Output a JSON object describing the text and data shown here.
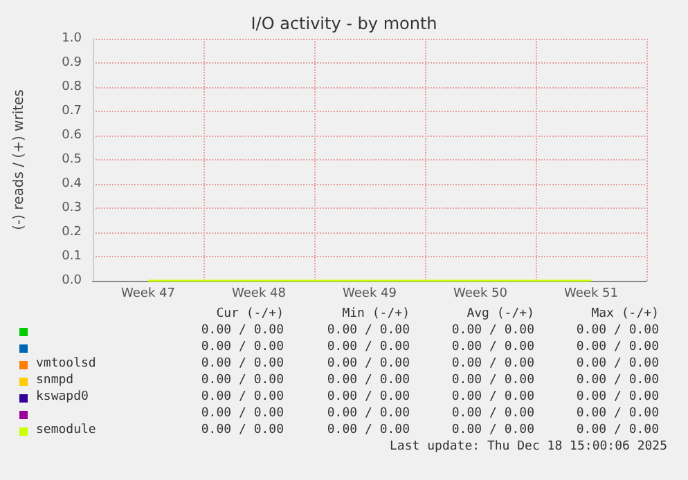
{
  "chart_data": {
    "type": "line",
    "title": "I/O activity - by month",
    "ylabel": "(-) reads / (+) writes",
    "categories": [
      "Week 47",
      "Week 48",
      "Week 49",
      "Week 50",
      "Week 51"
    ],
    "ylim": [
      0,
      1
    ],
    "yticks": [
      {
        "value": 0,
        "label": "0.0"
      },
      {
        "value": 0.1,
        "label": "0.1"
      },
      {
        "value": 0.2,
        "label": "0.2"
      },
      {
        "value": 0.3,
        "label": "0.3"
      },
      {
        "value": 0.4,
        "label": "0.4"
      },
      {
        "value": 0.5,
        "label": "0.5"
      },
      {
        "value": 0.6,
        "label": "0.6"
      },
      {
        "value": 0.7,
        "label": "0.7"
      },
      {
        "value": 0.8,
        "label": "0.8"
      },
      {
        "value": 0.9,
        "label": "0.9"
      },
      {
        "value": 1,
        "label": "1.0"
      }
    ],
    "grid": true,
    "legend": "bottom",
    "marker": "none",
    "series": [
      {
        "color": "#00cc00",
        "values": [
          null,
          null,
          null,
          null,
          null
        ]
      },
      {
        "color": "#0066b3",
        "values": [
          null,
          null,
          null,
          null,
          null
        ]
      },
      {
        "name": "vmtoolsd",
        "color": "#ff8000",
        "values": [
          null,
          null,
          null,
          null,
          null
        ]
      },
      {
        "name": "snmpd",
        "color": "#ffcc00",
        "values": [
          null,
          null,
          null,
          null,
          null
        ]
      },
      {
        "name": "kswapd0",
        "color": "#330099",
        "values": [
          null,
          null,
          null,
          null,
          null
        ]
      },
      {
        "color": "#990099",
        "values": [
          null,
          null,
          null,
          null,
          null
        ]
      },
      {
        "name": "semodule",
        "color": "#ccff00",
        "values": [
          0,
          0,
          0,
          0,
          0
        ]
      }
    ],
    "annotations": [
      "Cur (-/+)",
      "Min (-/+)",
      "Avg (-/+)",
      "Max (-/+)",
      "0.00 / 0.00",
      "0.00 / 0.00",
      "0.00 / 0.00",
      "0.00 / 0.00",
      "0.00 / 0.00",
      "0.00 / 0.00",
      "0.00 / 0.00",
      "0.00 / 0.00",
      "0.00 / 0.00",
      "0.00 / 0.00",
      "0.00 / 0.00",
      "0.00 / 0.00",
      "0.00 / 0.00",
      "0.00 / 0.00",
      "0.00 / 0.00",
      "0.00 / 0.00",
      "0.00 / 0.00",
      "0.00 / 0.00",
      "0.00 / 0.00",
      "0.00 / 0.00",
      "0.00 / 0.00",
      "0.00 / 0.00",
      "0.00 / 0.00",
      "0.00 / 0.00",
      "0.00 / 0.00",
      "0.00 / 0.00",
      "0.00 / 0.00",
      "0.00 / 0.00",
      "Last update: Thu Dec 18 15:00:06 2025"
    ]
  }
}
